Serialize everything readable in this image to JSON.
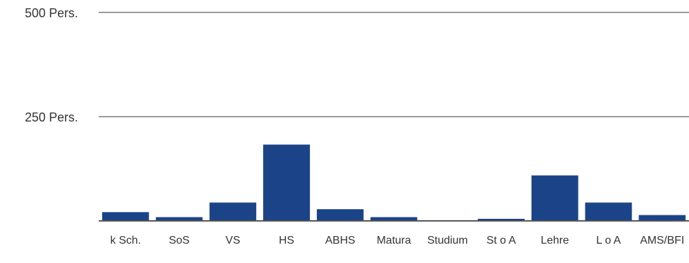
{
  "chart_data": {
    "type": "bar",
    "categories": [
      "k Sch.",
      "SoS",
      "VS",
      "HS",
      "ABHS",
      "Matura",
      "Studium",
      "St o A",
      "Lehre",
      "L o A",
      "AMS/BFI"
    ],
    "values": [
      21,
      9,
      44,
      183,
      28,
      9,
      1,
      5,
      109,
      44,
      14
    ],
    "ylim": [
      0,
      500
    ],
    "yticks": [
      {
        "value": 250,
        "label": "250 Pers."
      },
      {
        "value": 500,
        "label": "500 Pers."
      }
    ],
    "bar_color": "#1b4488",
    "grid_color": "#999999",
    "grid": true,
    "legend": "none"
  }
}
